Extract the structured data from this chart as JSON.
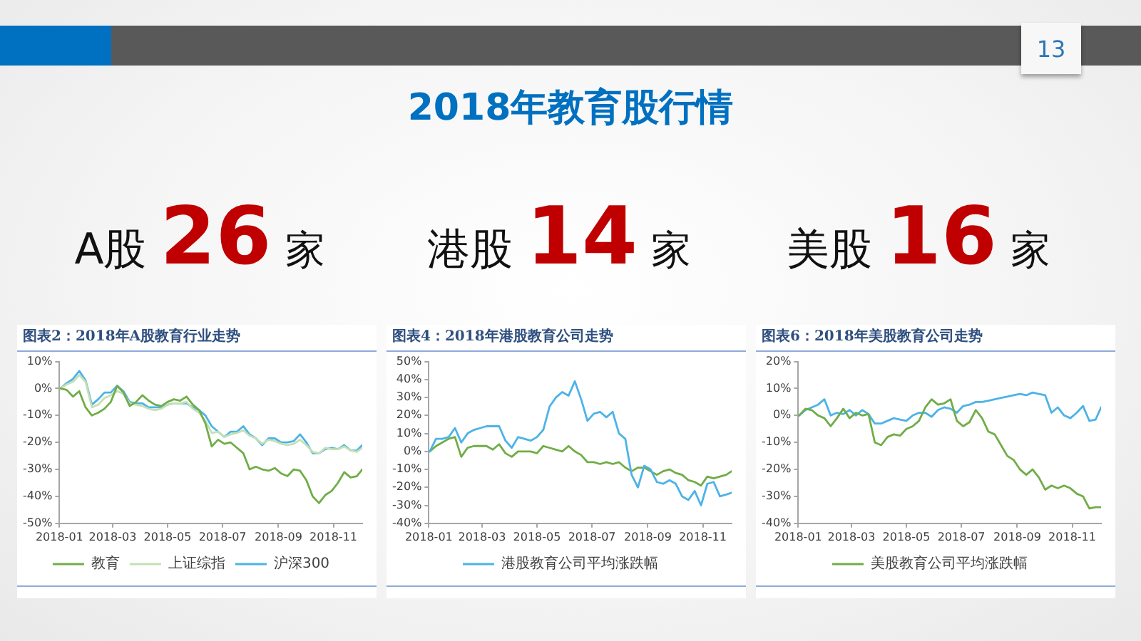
{
  "chart_data": [
    {
      "type": "other",
      "title": "2018年教育股行情",
      "annotations": [
        "13",
        "A股 26 家",
        "港股 14 家",
        "美股 16 家"
      ]
    },
    {
      "type": "line",
      "title": "图表2：2018年A股教育行业走势",
      "legend": "bottom",
      "x": [
        "2018-01-02",
        "2018-01-09",
        "2018-01-16",
        "2018-01-23",
        "2018-01-30",
        "2018-02-06",
        "2018-02-13",
        "2018-02-20",
        "2018-02-27",
        "2018-03-06",
        "2018-03-13",
        "2018-03-20",
        "2018-03-27",
        "2018-04-03",
        "2018-04-10",
        "2018-04-17",
        "2018-04-24",
        "2018-05-01",
        "2018-05-08",
        "2018-05-15",
        "2018-05-22",
        "2018-05-29",
        "2018-06-05",
        "2018-06-12",
        "2018-06-19",
        "2018-06-26",
        "2018-07-03",
        "2018-07-10",
        "2018-07-17",
        "2018-07-24",
        "2018-07-31",
        "2018-08-07",
        "2018-08-14",
        "2018-08-21",
        "2018-08-28",
        "2018-09-04",
        "2018-09-11",
        "2018-09-18",
        "2018-09-25",
        "2018-10-02",
        "2018-10-09",
        "2018-10-16",
        "2018-10-23",
        "2018-10-30",
        "2018-11-06",
        "2018-11-13",
        "2018-11-20",
        "2018-11-27",
        "2018-12-03"
      ],
      "xlim": [
        "2018-01",
        "2018-12-03"
      ],
      "xticks": [
        "2018-01",
        "2018-03",
        "2018-05",
        "2018-07",
        "2018-09",
        "2018-11"
      ],
      "ylim": [
        -50,
        10
      ],
      "yticks": [
        {
          "value": -50,
          "label": "-50%"
        },
        {
          "value": -40,
          "label": "-40%"
        },
        {
          "value": -30,
          "label": "-30%"
        },
        {
          "value": -20,
          "label": "-20%"
        },
        {
          "value": -10,
          "label": "-10%"
        },
        {
          "value": 0,
          "label": "0%"
        },
        {
          "value": 10,
          "label": "10%"
        }
      ],
      "series": [
        {
          "name": "教育",
          "color": "#70ad47",
          "values": [
            0,
            -0.5,
            -3,
            -1,
            -7,
            -10,
            -9,
            -7.5,
            -5,
            1,
            -1.5,
            -6.5,
            -5,
            -2.5,
            -4.5,
            -6,
            -6.5,
            -5,
            -4,
            -4.5,
            -3,
            -6,
            -8,
            -13,
            -21.5,
            -19,
            -20.5,
            -20,
            -22,
            -24,
            -30,
            -29,
            -30,
            -30.5,
            -29.5,
            -31.5,
            -32.5,
            -30,
            -30.5,
            -34,
            -40,
            -42.5,
            -39.5,
            -38,
            -35,
            -31,
            -33,
            -32.5,
            -30
          ]
        },
        {
          "name": "上证综指",
          "color": "#c5e0b4",
          "values": [
            0,
            1.5,
            2.5,
            5,
            2.5,
            -7,
            -6,
            -3.5,
            -2.5,
            -1,
            -2,
            -5.5,
            -6,
            -6.5,
            -7.5,
            -8,
            -7.5,
            -6,
            -5.5,
            -5.5,
            -5,
            -7.5,
            -9,
            -12,
            -16.5,
            -16,
            -18,
            -17,
            -16.5,
            -15.5,
            -17.5,
            -18.5,
            -20.5,
            -19,
            -19.5,
            -20.5,
            -21,
            -20.5,
            -19,
            -21,
            -23.5,
            -24,
            -22,
            -22.5,
            -22.5,
            -21.5,
            -23,
            -23.5,
            -22
          ]
        },
        {
          "name": "沪深300",
          "color": "#4db3e6",
          "values": [
            0,
            2,
            3.5,
            6.5,
            3,
            -6,
            -4,
            -1.5,
            -1.5,
            1,
            -1,
            -5,
            -5.5,
            -5.5,
            -7,
            -7,
            -7,
            -6,
            -5.5,
            -5.5,
            -5.5,
            -7,
            -8,
            -10,
            -14,
            -16,
            -18,
            -16,
            -16,
            -14,
            -17,
            -18.5,
            -21,
            -18.5,
            -18.5,
            -20,
            -20,
            -19.5,
            -17,
            -20,
            -24,
            -24,
            -22.5,
            -22,
            -22.5,
            -21,
            -23,
            -23,
            -21
          ]
        }
      ]
    },
    {
      "type": "line",
      "title": "图表4：2018年港股教育公司走势",
      "legend": "bottom",
      "x": [
        "2018-01-02",
        "2018-01-09",
        "2018-01-16",
        "2018-01-23",
        "2018-01-30",
        "2018-02-06",
        "2018-02-13",
        "2018-02-20",
        "2018-02-27",
        "2018-03-06",
        "2018-03-13",
        "2018-03-20",
        "2018-03-27",
        "2018-04-03",
        "2018-04-10",
        "2018-04-17",
        "2018-04-24",
        "2018-05-01",
        "2018-05-08",
        "2018-05-15",
        "2018-05-22",
        "2018-05-29",
        "2018-06-05",
        "2018-06-12",
        "2018-06-19",
        "2018-06-26",
        "2018-07-03",
        "2018-07-10",
        "2018-07-17",
        "2018-07-24",
        "2018-07-31",
        "2018-08-07",
        "2018-08-14",
        "2018-08-21",
        "2018-08-28",
        "2018-09-04",
        "2018-09-11",
        "2018-09-18",
        "2018-09-25",
        "2018-10-02",
        "2018-10-09",
        "2018-10-16",
        "2018-10-23",
        "2018-10-30",
        "2018-11-06",
        "2018-11-13",
        "2018-11-20",
        "2018-11-27",
        "2018-12-03"
      ],
      "xlim": [
        "2018-01",
        "2018-12-03"
      ],
      "xticks": [
        "2018-01",
        "2018-03",
        "2018-05",
        "2018-07",
        "2018-09",
        "2018-11"
      ],
      "ylim": [
        -40,
        50
      ],
      "yticks": [
        {
          "value": -40,
          "label": "-40%"
        },
        {
          "value": -30,
          "label": "-30%"
        },
        {
          "value": -20,
          "label": "-20%"
        },
        {
          "value": -10,
          "label": "-10%"
        },
        {
          "value": 0,
          "label": "0%"
        },
        {
          "value": 10,
          "label": "10%"
        },
        {
          "value": 20,
          "label": "20%"
        },
        {
          "value": 30,
          "label": "30%"
        },
        {
          "value": 40,
          "label": "40%"
        },
        {
          "value": 50,
          "label": "50%"
        }
      ],
      "series": [
        {
          "name": "港股教育公司平均涨跌幅",
          "color": "#4db3e6",
          "values": [
            0,
            7,
            7,
            8,
            13,
            5,
            10,
            12,
            13,
            14,
            14,
            14,
            6,
            2,
            8,
            7,
            6,
            8,
            12,
            25,
            30,
            33,
            31,
            39,
            29,
            17,
            21,
            22,
            19,
            22,
            10,
            7,
            -13,
            -20,
            -8,
            -10,
            -17,
            -18,
            -16,
            -18,
            -25,
            -27,
            -22,
            -30,
            -18,
            -17,
            -25,
            -24,
            -23
          ]
        },
        {
          "color": "#70ad47",
          "values": [
            0,
            3,
            5,
            7,
            8,
            -3,
            2,
            3,
            3,
            3,
            1,
            4,
            -1,
            -3,
            0,
            0,
            0,
            -1,
            3,
            2,
            1,
            0,
            3,
            0,
            -2,
            -6,
            -6,
            -7,
            -6,
            -7,
            -6,
            -9,
            -11,
            -9,
            -9,
            -11,
            -13,
            -11,
            -10,
            -12,
            -13,
            -16,
            -17,
            -19,
            -14,
            -15,
            -14,
            -13,
            -11
          ]
        }
      ]
    },
    {
      "type": "line",
      "title": "图表6：2018年美股教育公司走势",
      "legend": "bottom",
      "x": [
        "2018-01-02",
        "2018-01-09",
        "2018-01-16",
        "2018-01-23",
        "2018-01-30",
        "2018-02-06",
        "2018-02-13",
        "2018-02-20",
        "2018-02-27",
        "2018-03-06",
        "2018-03-13",
        "2018-03-20",
        "2018-03-27",
        "2018-04-03",
        "2018-04-10",
        "2018-04-17",
        "2018-04-24",
        "2018-05-01",
        "2018-05-08",
        "2018-05-15",
        "2018-05-22",
        "2018-05-29",
        "2018-06-05",
        "2018-06-12",
        "2018-06-19",
        "2018-06-26",
        "2018-07-03",
        "2018-07-10",
        "2018-07-17",
        "2018-07-24",
        "2018-07-31",
        "2018-08-07",
        "2018-08-14",
        "2018-08-21",
        "2018-08-28",
        "2018-09-04",
        "2018-09-11",
        "2018-09-18",
        "2018-09-25",
        "2018-10-02",
        "2018-10-09",
        "2018-10-16",
        "2018-10-23",
        "2018-10-30",
        "2018-11-06",
        "2018-11-13",
        "2018-11-20",
        "2018-11-27",
        "2018-12-03"
      ],
      "xlim": [
        "2018-01",
        "2018-12-03"
      ],
      "xticks": [
        "2018-01",
        "2018-03",
        "2018-05",
        "2018-07",
        "2018-09",
        "2018-11"
      ],
      "ylim": [
        -40,
        20
      ],
      "yticks": [
        {
          "value": -40,
          "label": "-40%"
        },
        {
          "value": -30,
          "label": "-30%"
        },
        {
          "value": -20,
          "label": "-20%"
        },
        {
          "value": -10,
          "label": "-10%"
        },
        {
          "value": 0,
          "label": "0%"
        },
        {
          "value": 10,
          "label": "10%"
        },
        {
          "value": 20,
          "label": "20%"
        }
      ],
      "series": [
        {
          "name": "美股教育公司平均涨跌幅",
          "color": "#70ad47",
          "values": [
            0,
            2.5,
            2,
            0,
            -1,
            -4,
            -1,
            2.5,
            -1,
            1,
            0,
            0.5,
            -10,
            -11,
            -8,
            -7,
            -7.5,
            -5,
            -4,
            -2,
            3,
            6,
            4,
            4.5,
            6,
            -2,
            -4,
            -2.5,
            2,
            -1,
            -6,
            -7,
            -11,
            -15,
            -16.5,
            -20,
            -22,
            -20,
            -23,
            -27.5,
            -26,
            -27,
            -26,
            -27,
            -29,
            -30,
            -34.5,
            -34,
            -34
          ]
        },
        {
          "color": "#4db3e6",
          "values": [
            0,
            2,
            3,
            4,
            6,
            0,
            1,
            0.5,
            2,
            0,
            2,
            0.5,
            -3,
            -3,
            -2,
            -1,
            -1.5,
            -2,
            0,
            1,
            1,
            -0.5,
            2,
            3,
            2.5,
            1,
            3.5,
            4,
            5,
            5,
            5.5,
            6,
            6.5,
            7,
            7.5,
            8,
            7.5,
            8.5,
            8,
            7.5,
            1,
            3,
            0,
            -1,
            1,
            3.5,
            -2,
            -1.5,
            3
          ]
        }
      ]
    }
  ]
}
